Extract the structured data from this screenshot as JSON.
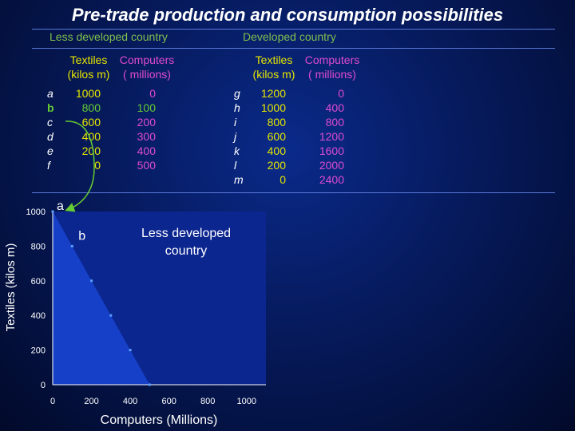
{
  "title": "Pre-trade production and consumption possibilities",
  "ldc": {
    "heading": "Less developed country",
    "col1": [
      "Textiles",
      "(kilos m)"
    ],
    "col2": [
      "Computers",
      "( millions)"
    ],
    "rows": [
      {
        "label": "a",
        "textiles": "1000",
        "computers": "0"
      },
      {
        "label": "b",
        "textiles": "800",
        "computers": "100"
      },
      {
        "label": "c",
        "textiles": "600",
        "computers": "200"
      },
      {
        "label": "d",
        "textiles": "400",
        "computers": "300"
      },
      {
        "label": "e",
        "textiles": "200",
        "computers": "400"
      },
      {
        "label": "f",
        "textiles": "0",
        "computers": "500"
      }
    ]
  },
  "dc": {
    "heading": "Developed country",
    "col1": [
      "Textiles",
      "(kilos m)"
    ],
    "col2": [
      "Computers",
      "( millions)"
    ],
    "rows": [
      {
        "label": "g",
        "textiles": "1200",
        "computers": "0"
      },
      {
        "label": "h",
        "textiles": "1000",
        "computers": "400"
      },
      {
        "label": "i",
        "textiles": "800",
        "computers": "800"
      },
      {
        "label": "j",
        "textiles": "600",
        "computers": "1200"
      },
      {
        "label": "k",
        "textiles": "400",
        "computers": "1600"
      },
      {
        "label": "l",
        "textiles": "200",
        "computers": "2000"
      },
      {
        "label": "m",
        "textiles": "0",
        "computers": "2400"
      }
    ]
  },
  "colors": {
    "heading": "#7fbf4d",
    "textiles": "#e6e600",
    "computers": "#e04bd0",
    "highlight": "#66cc33",
    "plot_bg": "#0c2690",
    "point": "#5aa0ff"
  },
  "chart_data": {
    "type": "line",
    "xlabel": "Computers (Millions)",
    "ylabel": "Textiles (kilos m)",
    "xlim": [
      0,
      1100
    ],
    "ylim": [
      0,
      1000
    ],
    "xticks": [
      0,
      200,
      400,
      600,
      800,
      1000
    ],
    "yticks": [
      0,
      200,
      400,
      600,
      800,
      1000
    ],
    "series": [
      {
        "x": [
          0,
          100,
          200,
          300,
          400,
          500
        ],
        "y": [
          1000,
          800,
          600,
          400,
          200,
          0
        ]
      }
    ],
    "point_labels": [
      {
        "text": "a",
        "x": 0,
        "y": 1000
      },
      {
        "text": "b",
        "x": 100,
        "y": 800
      }
    ],
    "annotation": "Less developed\ncountry"
  }
}
